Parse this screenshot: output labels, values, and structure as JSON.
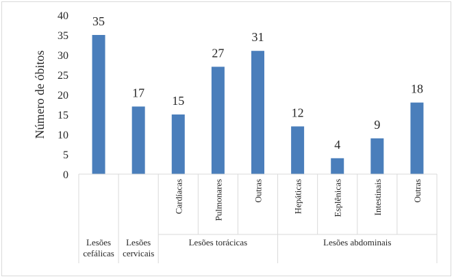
{
  "chart_data": {
    "type": "bar",
    "ylabel": "Número de óbitos",
    "xlabel": "",
    "title": "",
    "ylim": [
      0,
      40
    ],
    "yticks": [
      0,
      5,
      10,
      15,
      20,
      25,
      30,
      35,
      40
    ],
    "grid": false,
    "legend": "none",
    "bar_color": "#4a7ebb",
    "categories": [
      {
        "group": "Lesões cefálicas",
        "label": "",
        "value": 35
      },
      {
        "group": "Lesões cervicais",
        "label": "",
        "value": 17
      },
      {
        "group": "Lesões torácicas",
        "label": "Cardíacas",
        "value": 15
      },
      {
        "group": "Lesões torácicas",
        "label": "Pulmonares",
        "value": 27
      },
      {
        "group": "Lesões torácicas",
        "label": "Outras",
        "value": 31
      },
      {
        "group": "Lesões abdominais",
        "label": "Hepáticas",
        "value": 12
      },
      {
        "group": "Lesões abdominais",
        "label": "Esplênicas",
        "value": 4
      },
      {
        "group": "Lesões abdominais",
        "label": "Intestinais",
        "value": 9
      },
      {
        "group": "Lesões abdominais",
        "label": "Outras",
        "value": 18
      }
    ],
    "groups": [
      {
        "name_lines": [
          "Lesões",
          "cefálicas"
        ],
        "span": 1
      },
      {
        "name_lines": [
          "Lesões",
          "cervicais"
        ],
        "span": 1
      },
      {
        "name_lines": [
          "Lesões torácicas"
        ],
        "span": 3
      },
      {
        "name_lines": [
          "Lesões abdominais"
        ],
        "span": 4
      }
    ]
  }
}
